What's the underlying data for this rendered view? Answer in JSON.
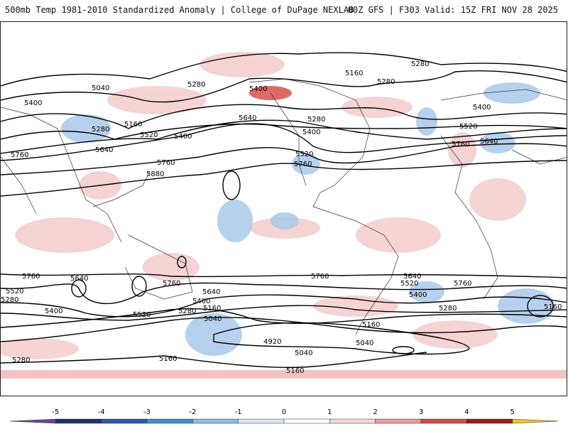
{
  "header": {
    "left_title": "500mb Temp 1981-2010 Standardized Anomaly | College of DuPage NEXLAB",
    "right_title": "00Z GFS | F303 Valid: 15Z FRI NOV 28 2025"
  },
  "colorbar": {
    "ticks": [
      "-5",
      "-4",
      "-3",
      "-2",
      "-1",
      "0",
      "1",
      "2",
      "3",
      "4",
      "5"
    ],
    "colors": [
      "#6a3fa0",
      "#1f2f6b",
      "#2a5aa8",
      "#3a8fd6",
      "#8cbce8",
      "#d4e6f5",
      "#ffffff",
      "#f7d6d6",
      "#e89a9a",
      "#d64848",
      "#a01818",
      "#f4c21a"
    ]
  },
  "contour_labels": [
    "5040",
    "5280",
    "5160",
    "5400",
    "5520",
    "5640",
    "5760",
    "5880",
    "4920"
  ],
  "map": {
    "contour_color": "#000000",
    "positive_anomaly_color": "#f2c0c0",
    "negative_anomaly_color": "#a9c9ea"
  }
}
